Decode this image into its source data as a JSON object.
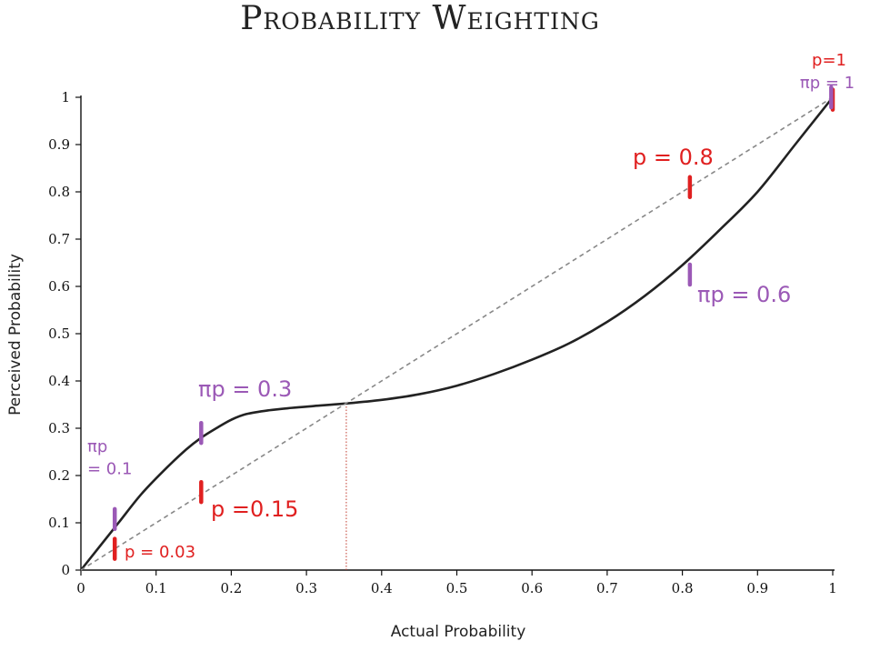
{
  "chart_data": {
    "type": "line",
    "title": "Probability Weighting",
    "xlabel": "Actual Probability",
    "ylabel": "Perceived Probability",
    "xlim": [
      0,
      1
    ],
    "ylim": [
      0,
      1
    ],
    "x_ticks": [
      "0",
      "0.1",
      "0.2",
      "0.3",
      "0.4",
      "0.5",
      "0.6",
      "0.7",
      "0.8",
      "0.9",
      "1"
    ],
    "y_ticks": [
      "0",
      "0.1",
      "0.2",
      "0.3",
      "0.4",
      "0.5",
      "0.6",
      "0.7",
      "0.8",
      "0.9",
      "1"
    ],
    "series": [
      {
        "style": "solid",
        "color": "#222222",
        "x": [
          0,
          0.02,
          0.05,
          0.08,
          0.11,
          0.14,
          0.16,
          0.18,
          0.2,
          0.22,
          0.25,
          0.28,
          0.31,
          0.35,
          0.4,
          0.45,
          0.5,
          0.55,
          0.6,
          0.65,
          0.7,
          0.75,
          0.8,
          0.85,
          0.9,
          0.95,
          1.0
        ],
        "y": [
          0,
          0.04,
          0.1,
          0.16,
          0.21,
          0.255,
          0.28,
          0.3,
          0.318,
          0.33,
          0.338,
          0.343,
          0.347,
          0.352,
          0.36,
          0.372,
          0.39,
          0.415,
          0.445,
          0.48,
          0.525,
          0.58,
          0.645,
          0.72,
          0.8,
          0.9,
          1.0
        ]
      },
      {
        "style": "dashed",
        "color": "#888888",
        "x": [
          0,
          1
        ],
        "y": [
          0,
          1
        ]
      }
    ],
    "reference_line": {
      "x": 0.353,
      "y": 0.353,
      "color": "#c0392b"
    },
    "markers": [
      {
        "x": 0.045,
        "y": 0.045,
        "color": "#e02020"
      },
      {
        "x": 0.045,
        "y": 0.108,
        "color": "#9b59b6"
      },
      {
        "x": 0.16,
        "y": 0.165,
        "color": "#e02020"
      },
      {
        "x": 0.16,
        "y": 0.29,
        "color": "#9b59b6"
      },
      {
        "x": 0.81,
        "y": 0.81,
        "color": "#e02020"
      },
      {
        "x": 0.81,
        "y": 0.625,
        "color": "#9b59b6"
      },
      {
        "x": 1.0,
        "y": 0.995,
        "color": "#e02020"
      },
      {
        "x": 0.998,
        "y": 1.0,
        "color": "#9b59b6"
      }
    ],
    "annotations": [
      {
        "lines": [
          "p = 0.03"
        ],
        "color": "#e02020",
        "size": "small"
      },
      {
        "lines": [
          "πp",
          "= 0.1"
        ],
        "color": "#9b59b6",
        "size": "small"
      },
      {
        "lines": [
          "p =0.15"
        ],
        "color": "#e02020",
        "size": "large"
      },
      {
        "lines": [
          "πp = 0.3"
        ],
        "color": "#9b59b6",
        "size": "large"
      },
      {
        "lines": [
          "p = 0.8"
        ],
        "color": "#e02020",
        "size": "large"
      },
      {
        "lines": [
          "πp = 0.6"
        ],
        "color": "#9b59b6",
        "size": "large"
      },
      {
        "lines": [
          "p=1"
        ],
        "color": "#e02020",
        "size": "small"
      },
      {
        "lines": [
          "πp = 1"
        ],
        "color": "#9b59b6",
        "size": "small"
      }
    ]
  }
}
